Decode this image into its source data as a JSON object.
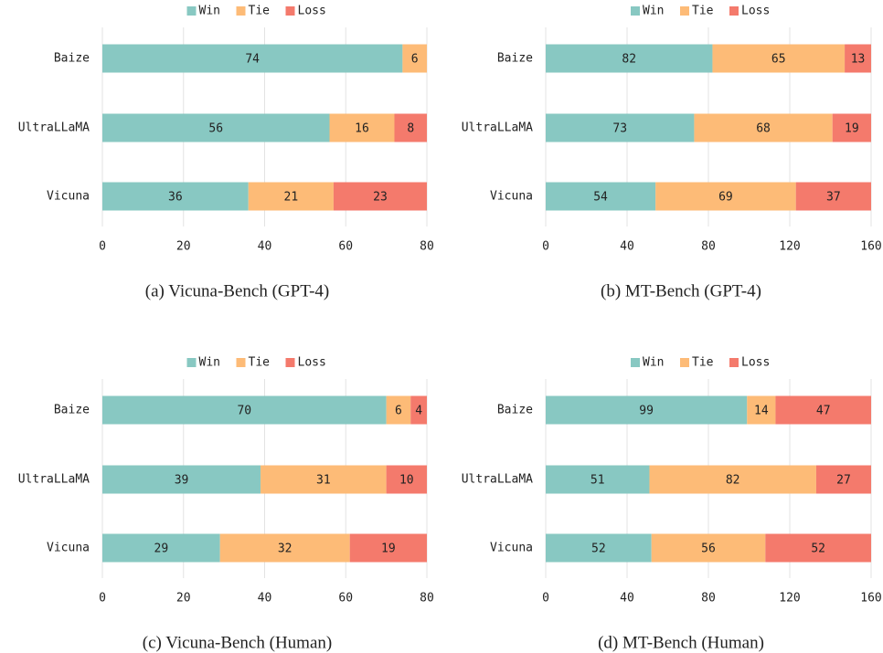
{
  "chart_data": [
    {
      "type": "bar",
      "orientation": "horizontal",
      "stacked": true,
      "caption": "(a) Vicuna-Bench (GPT-4)",
      "categories": [
        "Baize",
        "UltraLLaMA",
        "Vicuna"
      ],
      "series": [
        {
          "name": "Win",
          "color": "#88c8c2",
          "values": [
            74,
            56,
            36
          ]
        },
        {
          "name": "Tie",
          "color": "#fdbb77",
          "values": [
            6,
            16,
            21
          ]
        },
        {
          "name": "Loss",
          "color": "#f47a6c",
          "values": [
            0,
            8,
            23
          ]
        }
      ],
      "xlim": [
        0,
        80
      ],
      "xticks": [
        0,
        20,
        40,
        60,
        80
      ],
      "grid": true,
      "legend": "top"
    },
    {
      "type": "bar",
      "orientation": "horizontal",
      "stacked": true,
      "caption": "(b) MT-Bench (GPT-4)",
      "categories": [
        "Baize",
        "UltraLLaMA",
        "Vicuna"
      ],
      "series": [
        {
          "name": "Win",
          "color": "#88c8c2",
          "values": [
            82,
            73,
            54
          ]
        },
        {
          "name": "Tie",
          "color": "#fdbb77",
          "values": [
            65,
            68,
            69
          ]
        },
        {
          "name": "Loss",
          "color": "#f47a6c",
          "values": [
            13,
            19,
            37
          ]
        }
      ],
      "xlim": [
        0,
        160
      ],
      "xticks": [
        0,
        40,
        80,
        120,
        160
      ],
      "grid": true,
      "legend": "top"
    },
    {
      "type": "bar",
      "orientation": "horizontal",
      "stacked": true,
      "caption": "(c) Vicuna-Bench (Human)",
      "categories": [
        "Baize",
        "UltraLLaMA",
        "Vicuna"
      ],
      "series": [
        {
          "name": "Win",
          "color": "#88c8c2",
          "values": [
            70,
            39,
            29
          ]
        },
        {
          "name": "Tie",
          "color": "#fdbb77",
          "values": [
            6,
            31,
            32
          ]
        },
        {
          "name": "Loss",
          "color": "#f47a6c",
          "values": [
            4,
            10,
            19
          ]
        }
      ],
      "xlim": [
        0,
        80
      ],
      "xticks": [
        0,
        20,
        40,
        60,
        80
      ],
      "grid": true,
      "legend": "top"
    },
    {
      "type": "bar",
      "orientation": "horizontal",
      "stacked": true,
      "caption": "(d) MT-Bench (Human)",
      "categories": [
        "Baize",
        "UltraLLaMA",
        "Vicuna"
      ],
      "series": [
        {
          "name": "Win",
          "color": "#88c8c2",
          "values": [
            99,
            51,
            52
          ]
        },
        {
          "name": "Tie",
          "color": "#fdbb77",
          "values": [
            14,
            82,
            56
          ]
        },
        {
          "name": "Loss",
          "color": "#f47a6c",
          "values": [
            47,
            27,
            52
          ]
        }
      ],
      "xlim": [
        0,
        160
      ],
      "xticks": [
        0,
        40,
        80,
        120,
        160
      ],
      "grid": true,
      "legend": "top"
    }
  ]
}
